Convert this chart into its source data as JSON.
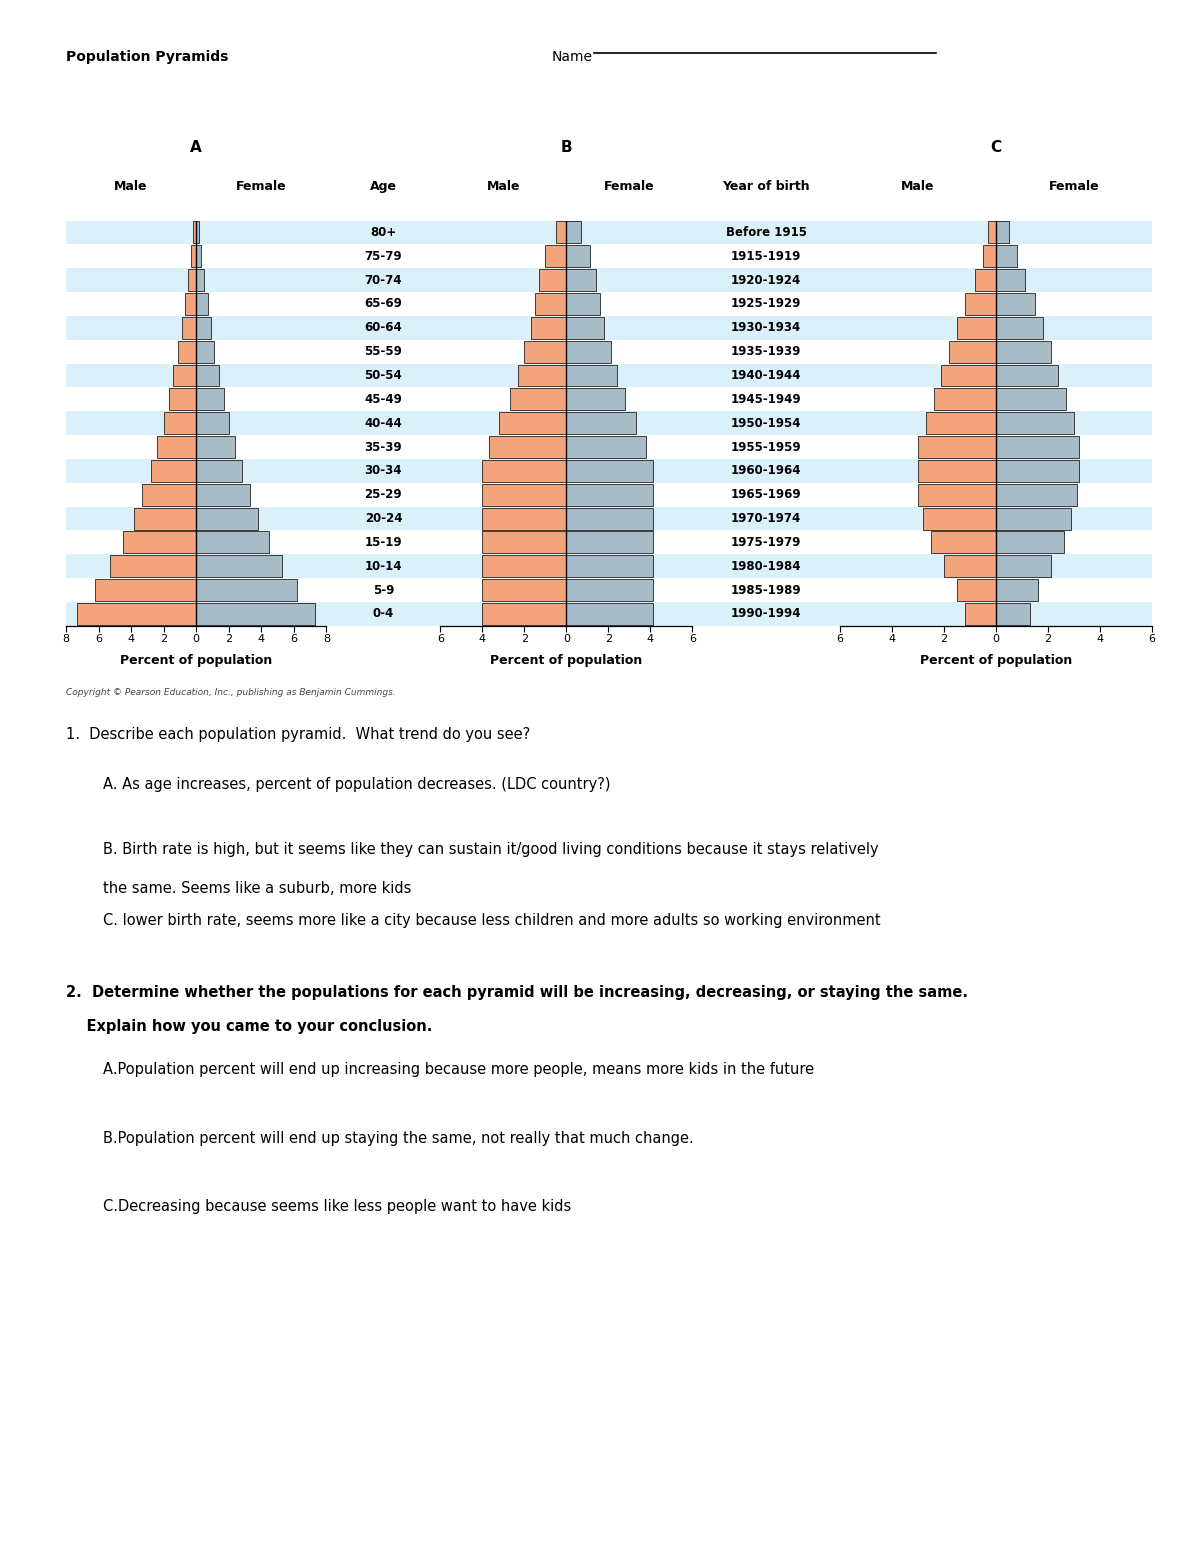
{
  "title": "Population Pyramids",
  "age_groups": [
    "80+",
    "75-79",
    "70-74",
    "65-69",
    "60-64",
    "55-59",
    "50-54",
    "45-49",
    "40-44",
    "35-39",
    "30-34",
    "25-29",
    "20-24",
    "15-19",
    "10-14",
    "5-9",
    "0-4"
  ],
  "year_of_birth": [
    "Before 1915",
    "1915-1919",
    "1920-1924",
    "1925-1929",
    "1930-1934",
    "1935-1939",
    "1940-1944",
    "1945-1949",
    "1950-1954",
    "1955-1959",
    "1960-1964",
    "1965-1969",
    "1970-1974",
    "1975-1979",
    "1980-1984",
    "1985-1989",
    "1990-1994"
  ],
  "pyramid_A_male": [
    0.2,
    0.3,
    0.5,
    0.7,
    0.9,
    1.1,
    1.4,
    1.7,
    2.0,
    2.4,
    2.8,
    3.3,
    3.8,
    4.5,
    5.3,
    6.2,
    7.3
  ],
  "pyramid_A_female": [
    0.2,
    0.3,
    0.5,
    0.7,
    0.9,
    1.1,
    1.4,
    1.7,
    2.0,
    2.4,
    2.8,
    3.3,
    3.8,
    4.5,
    5.3,
    6.2,
    7.3
  ],
  "pyramid_B_male": [
    0.5,
    1.0,
    1.3,
    1.5,
    1.7,
    2.0,
    2.3,
    2.7,
    3.2,
    3.7,
    4.0,
    4.0,
    4.0,
    4.0,
    4.0,
    4.0,
    4.0
  ],
  "pyramid_B_female": [
    0.7,
    1.1,
    1.4,
    1.6,
    1.8,
    2.1,
    2.4,
    2.8,
    3.3,
    3.8,
    4.1,
    4.1,
    4.1,
    4.1,
    4.1,
    4.1,
    4.1
  ],
  "pyramid_C_male": [
    0.3,
    0.5,
    0.8,
    1.2,
    1.5,
    1.8,
    2.1,
    2.4,
    2.7,
    3.0,
    3.0,
    3.0,
    2.8,
    2.5,
    2.0,
    1.5,
    1.2
  ],
  "pyramid_C_female": [
    0.5,
    0.8,
    1.1,
    1.5,
    1.8,
    2.1,
    2.4,
    2.7,
    3.0,
    3.2,
    3.2,
    3.1,
    2.9,
    2.6,
    2.1,
    1.6,
    1.3
  ],
  "male_color": "#F4A47A",
  "female_color": "#A8BCC8",
  "bar_edge_color": "#222222",
  "row_bg_even": "#DAF0FA",
  "row_bg_odd": "#FFFFFF",
  "copyright_text": "Copyright © Pearson Education, Inc., publishing as Benjamin Cummings.",
  "q1_header": "1.  Describe each population pyramid.  What trend do you see?",
  "q1a": "        A. As age increases, percent of population decreases. (LDC country?)",
  "q1b_line1": "        B. Birth rate is high, but it seems like they can sustain it/good living conditions because it stays relatively",
  "q1b_line2": "        the same. Seems like a suburb, more kids",
  "q1c": "        C. lower birth rate, seems more like a city because less children and more adults so working environment",
  "q2_line1": "2.  Determine whether the populations for each pyramid will be increasing, decreasing, or staying the same.",
  "q2_line2": "    Explain how you came to your conclusion.",
  "q2a": "        A.Population percent will end up increasing because more people, means more kids in the future",
  "q2b": "        B.Population percent will end up staying the same, not really that much change.",
  "q2c": "        C.Decreasing because seems like less people want to have kids"
}
